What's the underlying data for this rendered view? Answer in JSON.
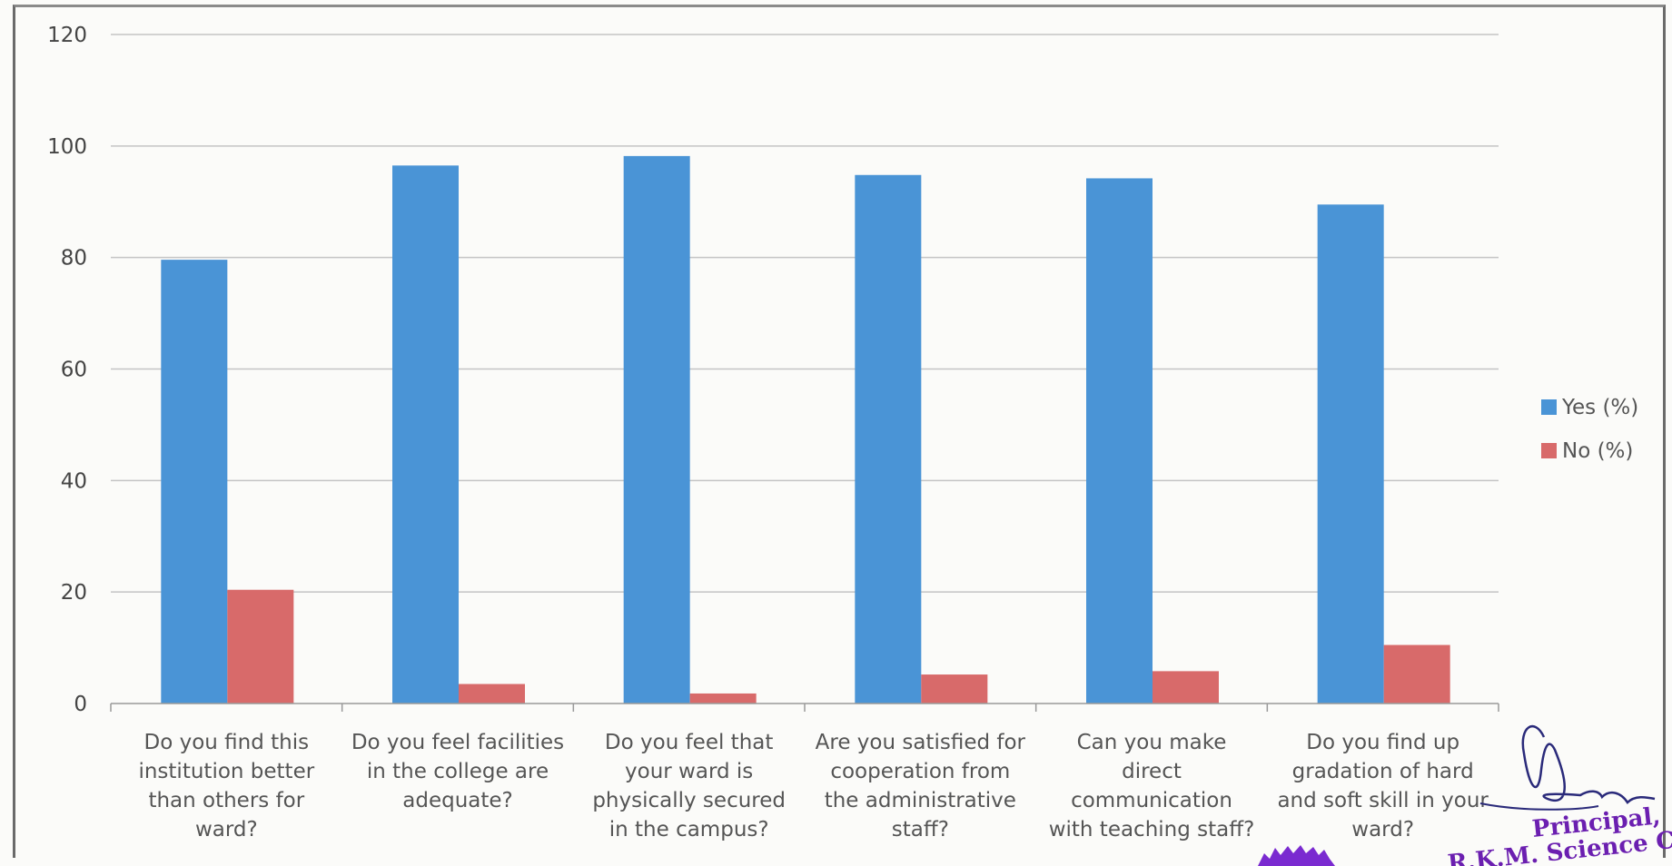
{
  "chart_data": {
    "type": "bar",
    "title": "",
    "xlabel": "",
    "ylabel": "",
    "ylim": [
      0,
      120
    ],
    "yticks": [
      0,
      20,
      40,
      60,
      80,
      100,
      120
    ],
    "grid": true,
    "legend_position": "right",
    "categories": [
      [
        "Do you find this",
        "institution better",
        "than others for",
        "ward?"
      ],
      [
        "Do you feel facilities",
        "in the college are",
        "adequate?"
      ],
      [
        "Do you feel that",
        "your ward is",
        "physically secured",
        "in the campus?"
      ],
      [
        "Are you satisfied for",
        "cooperation from",
        "the administrative",
        "staff?"
      ],
      [
        "Can you make",
        "direct",
        "communication",
        "with teaching staff?"
      ],
      [
        "Do you find up",
        "gradation of hard",
        "and soft skill in your",
        "ward?"
      ]
    ],
    "series": [
      {
        "name": "Yes (%)",
        "color": "#4a94d6",
        "values": [
          79.6,
          96.5,
          98.2,
          94.8,
          94.2,
          89.5
        ]
      },
      {
        "name": "No (%)",
        "color": "#d86a6a",
        "values": [
          20.4,
          3.5,
          1.8,
          5.2,
          5.8,
          10.5
        ]
      }
    ]
  },
  "signature": {
    "title": "Principal,",
    "institution_fragment": "R.K.M. Science Co"
  }
}
